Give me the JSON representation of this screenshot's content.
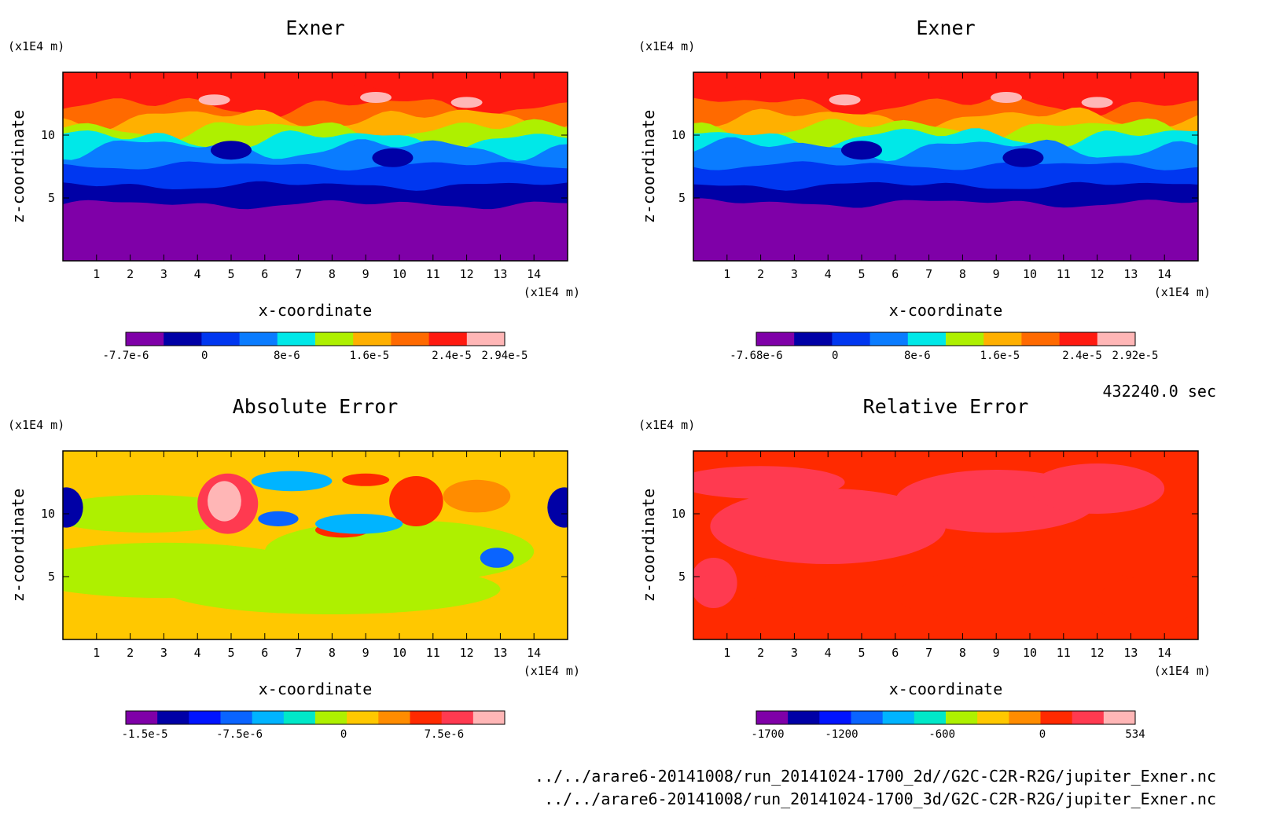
{
  "chart_data": [
    {
      "type": "heatmap",
      "title": "Exner",
      "xlabel": "x-coordinate",
      "ylabel": "z-coordinate",
      "x_unit": "(x1E4 m)",
      "y_unit": "(x1E4 m)",
      "xlim": [
        0,
        15
      ],
      "ylim": [
        0,
        15
      ],
      "x_ticks": [
        "1",
        "2",
        "3",
        "4",
        "5",
        "6",
        "7",
        "8",
        "9",
        "10",
        "11",
        "12",
        "13",
        "14"
      ],
      "y_ticks": [
        "5",
        "10"
      ],
      "colorbar": {
        "colors": [
          "#7f00a8",
          "#0000a6",
          "#0037f0",
          "#0a7cff",
          "#00e8e8",
          "#aef000",
          "#ffb000",
          "#ff6a00",
          "#ff1a10",
          "#ffb6b6"
        ],
        "tick_labels": [
          "-7.7e-6",
          "0",
          "8e-6",
          "1.6e-5",
          "2.4e-5",
          "2.94e-5"
        ],
        "tick_positions": [
          0,
          0.208,
          0.425,
          0.643,
          0.86,
          1.0
        ],
        "value_range": [
          -7.7e-06,
          2.94e-05
        ]
      },
      "layers": [
        {
          "level": 0,
          "base": 4.5
        },
        {
          "level": 1,
          "base": 6.0
        },
        {
          "level": 2,
          "base": 7.6
        },
        {
          "level": 3,
          "base": 9.0
        },
        {
          "level": 4,
          "base": 9.7
        },
        {
          "level": 5,
          "base": 10.5
        },
        {
          "level": 6,
          "base": 11.4
        },
        {
          "level": 7,
          "base": 12.3
        },
        {
          "level": 8,
          "base": 13.3
        }
      ]
    },
    {
      "type": "heatmap",
      "title": "Exner",
      "xlabel": "x-coordinate",
      "ylabel": "z-coordinate",
      "x_unit": "(x1E4 m)",
      "y_unit": "(x1E4 m)",
      "xlim": [
        0,
        15
      ],
      "ylim": [
        0,
        15
      ],
      "x_ticks": [
        "1",
        "2",
        "3",
        "4",
        "5",
        "6",
        "7",
        "8",
        "9",
        "10",
        "11",
        "12",
        "13",
        "14"
      ],
      "y_ticks": [
        "5",
        "10"
      ],
      "colorbar": {
        "colors": [
          "#7f00a8",
          "#0000a6",
          "#0037f0",
          "#0a7cff",
          "#00e8e8",
          "#aef000",
          "#ffb000",
          "#ff6a00",
          "#ff1a10",
          "#ffb6b6"
        ],
        "tick_labels": [
          "-7.68e-6",
          "0",
          "8e-6",
          "1.6e-5",
          "2.4e-5",
          "2.92e-5"
        ],
        "tick_positions": [
          0,
          0.208,
          0.425,
          0.643,
          0.86,
          1.0
        ],
        "value_range": [
          -7.68e-06,
          2.92e-05
        ]
      },
      "layers": [
        {
          "level": 0,
          "base": 4.6
        },
        {
          "level": 1,
          "base": 6.0
        },
        {
          "level": 2,
          "base": 7.6
        },
        {
          "level": 3,
          "base": 9.0
        },
        {
          "level": 4,
          "base": 9.9
        },
        {
          "level": 5,
          "base": 10.6
        },
        {
          "level": 6,
          "base": 11.4
        },
        {
          "level": 7,
          "base": 12.4
        },
        {
          "level": 8,
          "base": 13.2
        }
      ]
    },
    {
      "type": "heatmap",
      "title": "Absolute Error",
      "xlabel": "x-coordinate",
      "ylabel": "z-coordinate",
      "x_unit": "(x1E4 m)",
      "y_unit": "(x1E4 m)",
      "xlim": [
        0,
        15
      ],
      "ylim": [
        0,
        15
      ],
      "x_ticks": [
        "1",
        "2",
        "3",
        "4",
        "5",
        "6",
        "7",
        "8",
        "9",
        "10",
        "11",
        "12",
        "13",
        "14"
      ],
      "y_ticks": [
        "5",
        "10"
      ],
      "colorbar": {
        "colors": [
          "#7f00a8",
          "#0000a6",
          "#0014ff",
          "#0a64ff",
          "#00b4ff",
          "#00e8c8",
          "#aef000",
          "#ffc800",
          "#ff8c00",
          "#ff2a00",
          "#ff3a50",
          "#ffb6b6"
        ],
        "tick_labels": [
          "-1.5e-5",
          "-7.5e-6",
          "0",
          "7.5e-6"
        ],
        "tick_positions": [
          0.05,
          0.3,
          0.575,
          0.84
        ],
        "value_range": [
          -1.5e-05,
          1.2e-05
        ]
      },
      "background_level": 7
    },
    {
      "type": "heatmap",
      "title": "Relative Error",
      "xlabel": "x-coordinate",
      "ylabel": "z-coordinate",
      "x_unit": "(x1E4 m)",
      "y_unit": "(x1E4 m)",
      "xlim": [
        0,
        15
      ],
      "ylim": [
        0,
        15
      ],
      "x_ticks": [
        "1",
        "2",
        "3",
        "4",
        "5",
        "6",
        "7",
        "8",
        "9",
        "10",
        "11",
        "12",
        "13",
        "14"
      ],
      "y_ticks": [
        "5",
        "10"
      ],
      "colorbar": {
        "colors": [
          "#7f00a8",
          "#0000a6",
          "#0014ff",
          "#0a64ff",
          "#00b4ff",
          "#00e8c8",
          "#aef000",
          "#ffc800",
          "#ff8c00",
          "#ff2a00",
          "#ff3a50",
          "#ffb6b6"
        ],
        "tick_labels": [
          "-1700",
          "-1200",
          "-600",
          "0",
          "534"
        ],
        "tick_positions": [
          0.03,
          0.225,
          0.49,
          0.755,
          1.0
        ],
        "value_range": [
          -1700,
          534
        ]
      },
      "background_level": 9
    }
  ],
  "time_label": "432240.0 sec",
  "footer": {
    "line1": "../../arare6-20141008/run_20141024-1700_2d//G2C-C2R-R2G/jupiter_Exner.nc",
    "line2": "../../arare6-20141008/run_20141024-1700_3d/G2C-C2R-R2G/jupiter_Exner.nc"
  }
}
